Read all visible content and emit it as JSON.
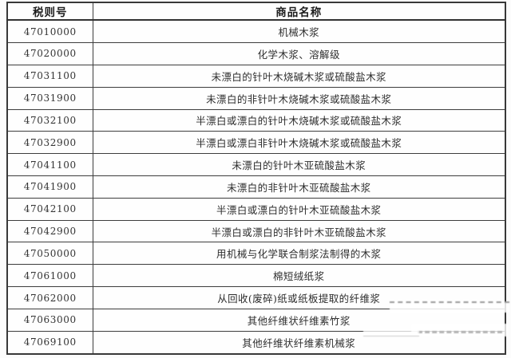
{
  "table": {
    "headers": [
      "税则号",
      "商品名称"
    ],
    "rows": [
      {
        "code": "47010000",
        "name": "机械木浆"
      },
      {
        "code": "47020000",
        "name": "化学木浆、溶解级"
      },
      {
        "code": "47031100",
        "name": "未漂白的针叶木烧碱木浆或硫酸盐木浆"
      },
      {
        "code": "47031900",
        "name": "未漂白的非针叶木烧碱木浆或硫酸盐木浆"
      },
      {
        "code": "47032100",
        "name": "半漂白或漂白的针叶木烧碱木浆或硫酸盐木浆"
      },
      {
        "code": "47032900",
        "name": "半漂白或漂白非针叶木烧碱木浆或硫酸盐木浆"
      },
      {
        "code": "47041100",
        "name": "未漂白的针叶木亚硫酸盐木浆"
      },
      {
        "code": "47041900",
        "name": "未漂白的非针叶木亚硫酸盐木浆"
      },
      {
        "code": "47042100",
        "name": "半漂白或漂白的针叶木亚硫酸盐木浆"
      },
      {
        "code": "47042900",
        "name": "半漂白或漂白的非针叶木亚硫酸盐木浆"
      },
      {
        "code": "47050000",
        "name": "用机械与化学联合制浆法制得的木浆"
      },
      {
        "code": "47061000",
        "name": "棉短绒纸浆"
      },
      {
        "code": "47062000",
        "name": "从回收(废碎)纸或纸板提取的纤维浆"
      },
      {
        "code": "47063000",
        "name": "其他纤维状纤维素竹浆"
      },
      {
        "code": "47069100",
        "name": "其他纤维状纤维素机械浆"
      }
    ]
  },
  "colors": {
    "border": "#3d3d3d",
    "header_text": "#1c1c1c",
    "cell_text": "#2e2e2e",
    "background": "#fcfcfc"
  }
}
